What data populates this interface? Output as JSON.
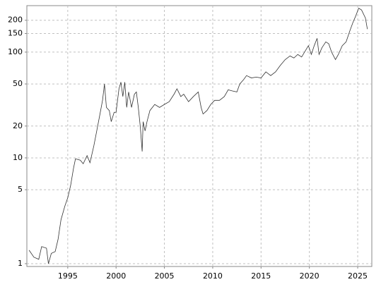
{
  "chart_data": {
    "type": "line",
    "color": "#333333",
    "log_y": true,
    "grid": true,
    "x": [
      1991.0,
      1991.5,
      1992.0,
      1992.3,
      1992.8,
      1993.0,
      1993.3,
      1993.7,
      1994.0,
      1994.3,
      1994.7,
      1995.0,
      1995.3,
      1995.6,
      1995.8,
      1996.3,
      1996.6,
      1997.0,
      1997.3,
      1997.7,
      1998.0,
      1998.3,
      1998.6,
      1998.8,
      1999.0,
      1999.3,
      1999.5,
      1999.8,
      2000.0,
      2000.3,
      2000.5,
      2000.7,
      2000.9,
      2001.1,
      2001.3,
      2001.6,
      2001.9,
      2002.1,
      2002.3,
      2002.5,
      2002.7,
      2002.8,
      2003.0,
      2003.2,
      2003.5,
      2004.0,
      2004.5,
      2005.0,
      2005.5,
      2006.0,
      2006.3,
      2006.7,
      2007.0,
      2007.5,
      2008.0,
      2008.5,
      2008.8,
      2009.0,
      2009.4,
      2009.8,
      2010.2,
      2010.7,
      2011.2,
      2011.6,
      2012.0,
      2012.5,
      2012.8,
      2013.2,
      2013.5,
      2014.0,
      2014.5,
      2015.0,
      2015.5,
      2016.0,
      2016.5,
      2017.0,
      2017.5,
      2018.0,
      2018.4,
      2018.8,
      2019.2,
      2019.5,
      2019.9,
      2020.2,
      2020.5,
      2020.8,
      2021.0,
      2021.3,
      2021.7,
      2022.0,
      2022.3,
      2022.7,
      2023.0,
      2023.4,
      2023.8,
      2024.2,
      2024.5,
      2024.8,
      2025.1,
      2025.4,
      2025.8,
      2026.0
    ],
    "values": [
      1.34,
      1.15,
      1.1,
      1.45,
      1.4,
      1.0,
      1.25,
      1.3,
      1.7,
      2.6,
      3.5,
      4.2,
      5.5,
      8,
      9.8,
      9.5,
      8.8,
      10.5,
      9,
      13,
      18,
      25,
      35,
      50,
      30,
      28,
      22,
      27,
      27,
      45,
      52,
      38,
      52,
      30,
      42,
      30,
      40,
      42,
      30,
      20,
      11.5,
      22,
      18,
      22,
      28,
      32,
      30,
      32,
      34,
      40,
      45,
      38,
      40,
      34,
      38,
      42,
      30,
      26,
      28,
      32,
      35,
      35,
      38,
      44,
      43,
      42,
      50,
      55,
      60,
      57,
      58,
      57,
      65,
      60,
      65,
      75,
      85,
      92,
      88,
      95,
      90,
      100,
      115,
      95,
      115,
      135,
      95,
      110,
      125,
      120,
      100,
      85,
      95,
      115,
      125,
      160,
      190,
      220,
      260,
      250,
      210,
      165
    ],
    "xlim": [
      1990.77,
      2026.46
    ],
    "xticks": [
      1995,
      2000,
      2005,
      2010,
      2015,
      2020,
      2025
    ],
    "ylim": [
      0.94,
      275
    ],
    "yticks": [
      1,
      5,
      10,
      20,
      50,
      100,
      150,
      200
    ]
  }
}
